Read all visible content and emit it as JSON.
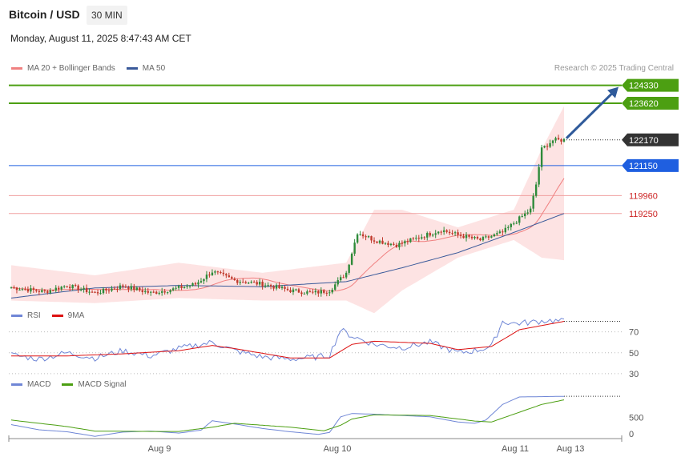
{
  "header": {
    "title": "Bitcoin / USD",
    "interval": "30 MIN",
    "datetime": "Monday, August 11, 2025 8:47:43 AM CET",
    "credit": "Research © 2025 Trading Central"
  },
  "colors": {
    "up": "#2e8b3a",
    "down": "#c0392b",
    "bb_fill": "#fde3e3",
    "ma20": "#f08080",
    "ma50": "#3a5a9a",
    "resistance": "#4c9f12",
    "current": "#333333",
    "pivot": "#1f5fe0",
    "support": "#f0a0a0",
    "support_text": "#cc2222",
    "arrow": "#2f5a9a",
    "rsi": "#6f86d6",
    "rsi_ma": "#dd1111",
    "macd": "#6f86d6",
    "macd_signal": "#4c9f12"
  },
  "chart_data": [
    {
      "type": "candlestick",
      "legend": [
        {
          "name": "MA 20 + Bollinger Bands",
          "color": "#f08080"
        },
        {
          "name": "MA 50",
          "color": "#3a5a9a"
        }
      ],
      "x_ticks": [
        "Aug 9",
        "Aug 10",
        "Aug 11",
        "Aug 13"
      ],
      "ylim": [
        115500,
        124700
      ],
      "levels": [
        {
          "label": "124330",
          "value": 124330,
          "kind": "resistance"
        },
        {
          "label": "123620",
          "value": 123620,
          "kind": "resistance"
        },
        {
          "label": "122170",
          "value": 122170,
          "kind": "current"
        },
        {
          "label": "121150",
          "value": 121150,
          "kind": "pivot"
        },
        {
          "label": "119960",
          "value": 119960,
          "kind": "support"
        },
        {
          "label": "119250",
          "value": 119250,
          "kind": "support"
        }
      ],
      "close_keypoints": [
        [
          0,
          116320
        ],
        [
          12,
          116150
        ],
        [
          20,
          116400
        ],
        [
          30,
          116100
        ],
        [
          40,
          116380
        ],
        [
          50,
          116100
        ],
        [
          58,
          116250
        ],
        [
          66,
          116450
        ],
        [
          72,
          116950
        ],
        [
          80,
          116600
        ],
        [
          90,
          116450
        ],
        [
          100,
          116200
        ],
        [
          108,
          116100
        ],
        [
          114,
          116200
        ],
        [
          120,
          116900
        ],
        [
          124,
          118500
        ],
        [
          130,
          118200
        ],
        [
          138,
          118000
        ],
        [
          146,
          118300
        ],
        [
          154,
          118600
        ],
        [
          160,
          118400
        ],
        [
          168,
          118200
        ],
        [
          176,
          118500
        ],
        [
          182,
          119050
        ],
        [
          186,
          119400
        ],
        [
          188,
          120400
        ],
        [
          190,
          121800
        ],
        [
          194,
          122150
        ],
        [
          198,
          122170
        ]
      ],
      "ma50_keypoints": [
        [
          0,
          115900
        ],
        [
          30,
          116300
        ],
        [
          60,
          116400
        ],
        [
          90,
          116350
        ],
        [
          120,
          116550
        ],
        [
          140,
          117100
        ],
        [
          160,
          117700
        ],
        [
          180,
          118500
        ],
        [
          198,
          119250
        ]
      ],
      "bb_upper_keypoints": [
        [
          0,
          117200
        ],
        [
          30,
          116800
        ],
        [
          60,
          117300
        ],
        [
          90,
          116900
        ],
        [
          120,
          117300
        ],
        [
          130,
          119400
        ],
        [
          140,
          119400
        ],
        [
          160,
          118700
        ],
        [
          180,
          119400
        ],
        [
          190,
          121800
        ],
        [
          198,
          123500
        ]
      ],
      "bb_lower_keypoints": [
        [
          0,
          115800
        ],
        [
          30,
          115700
        ],
        [
          60,
          115900
        ],
        [
          90,
          115800
        ],
        [
          120,
          115800
        ],
        [
          130,
          115300
        ],
        [
          140,
          116200
        ],
        [
          160,
          117500
        ],
        [
          180,
          118200
        ],
        [
          190,
          117500
        ],
        [
          198,
          117400
        ]
      ]
    },
    {
      "type": "line",
      "legend": [
        {
          "name": "RSI",
          "color": "#6f86d6"
        },
        {
          "name": "9MA",
          "color": "#dd1111"
        }
      ],
      "y_ticks": [
        70,
        50,
        30
      ],
      "ylim": [
        20,
        85
      ],
      "rsi_keypoints": [
        [
          0,
          48
        ],
        [
          10,
          44
        ],
        [
          20,
          50
        ],
        [
          30,
          45
        ],
        [
          40,
          52
        ],
        [
          50,
          47
        ],
        [
          60,
          54
        ],
        [
          68,
          58
        ],
        [
          72,
          60
        ],
        [
          80,
          52
        ],
        [
          90,
          46
        ],
        [
          100,
          44
        ],
        [
          110,
          46
        ],
        [
          114,
          48
        ],
        [
          118,
          72
        ],
        [
          122,
          66
        ],
        [
          126,
          62
        ],
        [
          130,
          58
        ],
        [
          140,
          55
        ],
        [
          150,
          60
        ],
        [
          156,
          54
        ],
        [
          160,
          50
        ],
        [
          166,
          52
        ],
        [
          172,
          56
        ],
        [
          176,
          80
        ],
        [
          180,
          78
        ],
        [
          186,
          79
        ],
        [
          192,
          81
        ],
        [
          198,
          80
        ]
      ],
      "rsi_ma_keypoints": [
        [
          0,
          47
        ],
        [
          20,
          47
        ],
        [
          40,
          49
        ],
        [
          60,
          52
        ],
        [
          72,
          57
        ],
        [
          80,
          54
        ],
        [
          100,
          45
        ],
        [
          114,
          45
        ],
        [
          122,
          58
        ],
        [
          130,
          61
        ],
        [
          150,
          59
        ],
        [
          160,
          53
        ],
        [
          172,
          56
        ],
        [
          182,
          72
        ],
        [
          198,
          80
        ]
      ]
    },
    {
      "type": "line",
      "legend": [
        {
          "name": "MACD",
          "color": "#6f86d6"
        },
        {
          "name": "MACD Signal",
          "color": "#4c9f12"
        }
      ],
      "y_ticks": [
        500,
        0
      ],
      "ylim": [
        -150,
        1400
      ],
      "macd_keypoints": [
        [
          0,
          280
        ],
        [
          10,
          120
        ],
        [
          20,
          60
        ],
        [
          30,
          -80
        ],
        [
          40,
          50
        ],
        [
          50,
          80
        ],
        [
          60,
          20
        ],
        [
          68,
          110
        ],
        [
          72,
          400
        ],
        [
          80,
          300
        ],
        [
          90,
          160
        ],
        [
          100,
          60
        ],
        [
          110,
          -20
        ],
        [
          114,
          40
        ],
        [
          118,
          520
        ],
        [
          122,
          620
        ],
        [
          130,
          600
        ],
        [
          140,
          560
        ],
        [
          150,
          520
        ],
        [
          160,
          360
        ],
        [
          166,
          320
        ],
        [
          170,
          420
        ],
        [
          176,
          900
        ],
        [
          182,
          1130
        ],
        [
          198,
          1150
        ]
      ],
      "macd_signal_keypoints": [
        [
          0,
          420
        ],
        [
          20,
          220
        ],
        [
          30,
          80
        ],
        [
          50,
          70
        ],
        [
          60,
          70
        ],
        [
          72,
          200
        ],
        [
          80,
          320
        ],
        [
          100,
          200
        ],
        [
          112,
          90
        ],
        [
          118,
          260
        ],
        [
          122,
          450
        ],
        [
          130,
          580
        ],
        [
          150,
          560
        ],
        [
          166,
          390
        ],
        [
          172,
          360
        ],
        [
          180,
          600
        ],
        [
          190,
          900
        ],
        [
          198,
          1040
        ]
      ]
    }
  ]
}
